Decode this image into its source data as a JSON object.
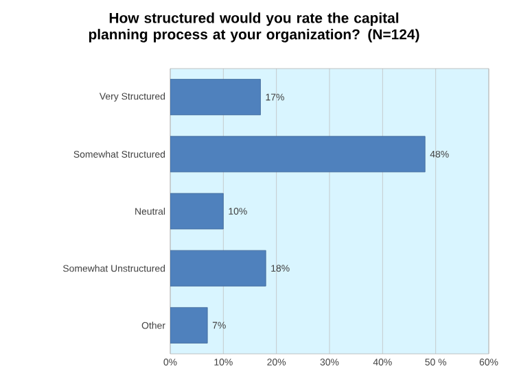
{
  "chart_data": {
    "type": "bar",
    "orientation": "horizontal",
    "title": "How structured would you rate the capital planning process at your organization? (N=124)",
    "categories": [
      "Very Structured",
      "Somewhat Structured",
      "Neutral",
      "Somewhat Unstructured",
      "Other"
    ],
    "values": [
      17,
      48,
      10,
      18,
      7
    ],
    "value_labels": [
      "17%",
      "48%",
      "10%",
      "18%",
      "7%"
    ],
    "color": "#4f81bd",
    "xlim": [
      0,
      60
    ],
    "xticks": [
      {
        "value": 0,
        "label": "0%"
      },
      {
        "value": 10,
        "label": "10%"
      },
      {
        "value": 20,
        "label": "20%"
      },
      {
        "value": 30,
        "label": "30%"
      },
      {
        "value": 40,
        "label": "40%"
      },
      {
        "value": 50,
        "label": "50 %"
      },
      {
        "value": 60,
        "label": "60%"
      }
    ],
    "grid": "x"
  }
}
